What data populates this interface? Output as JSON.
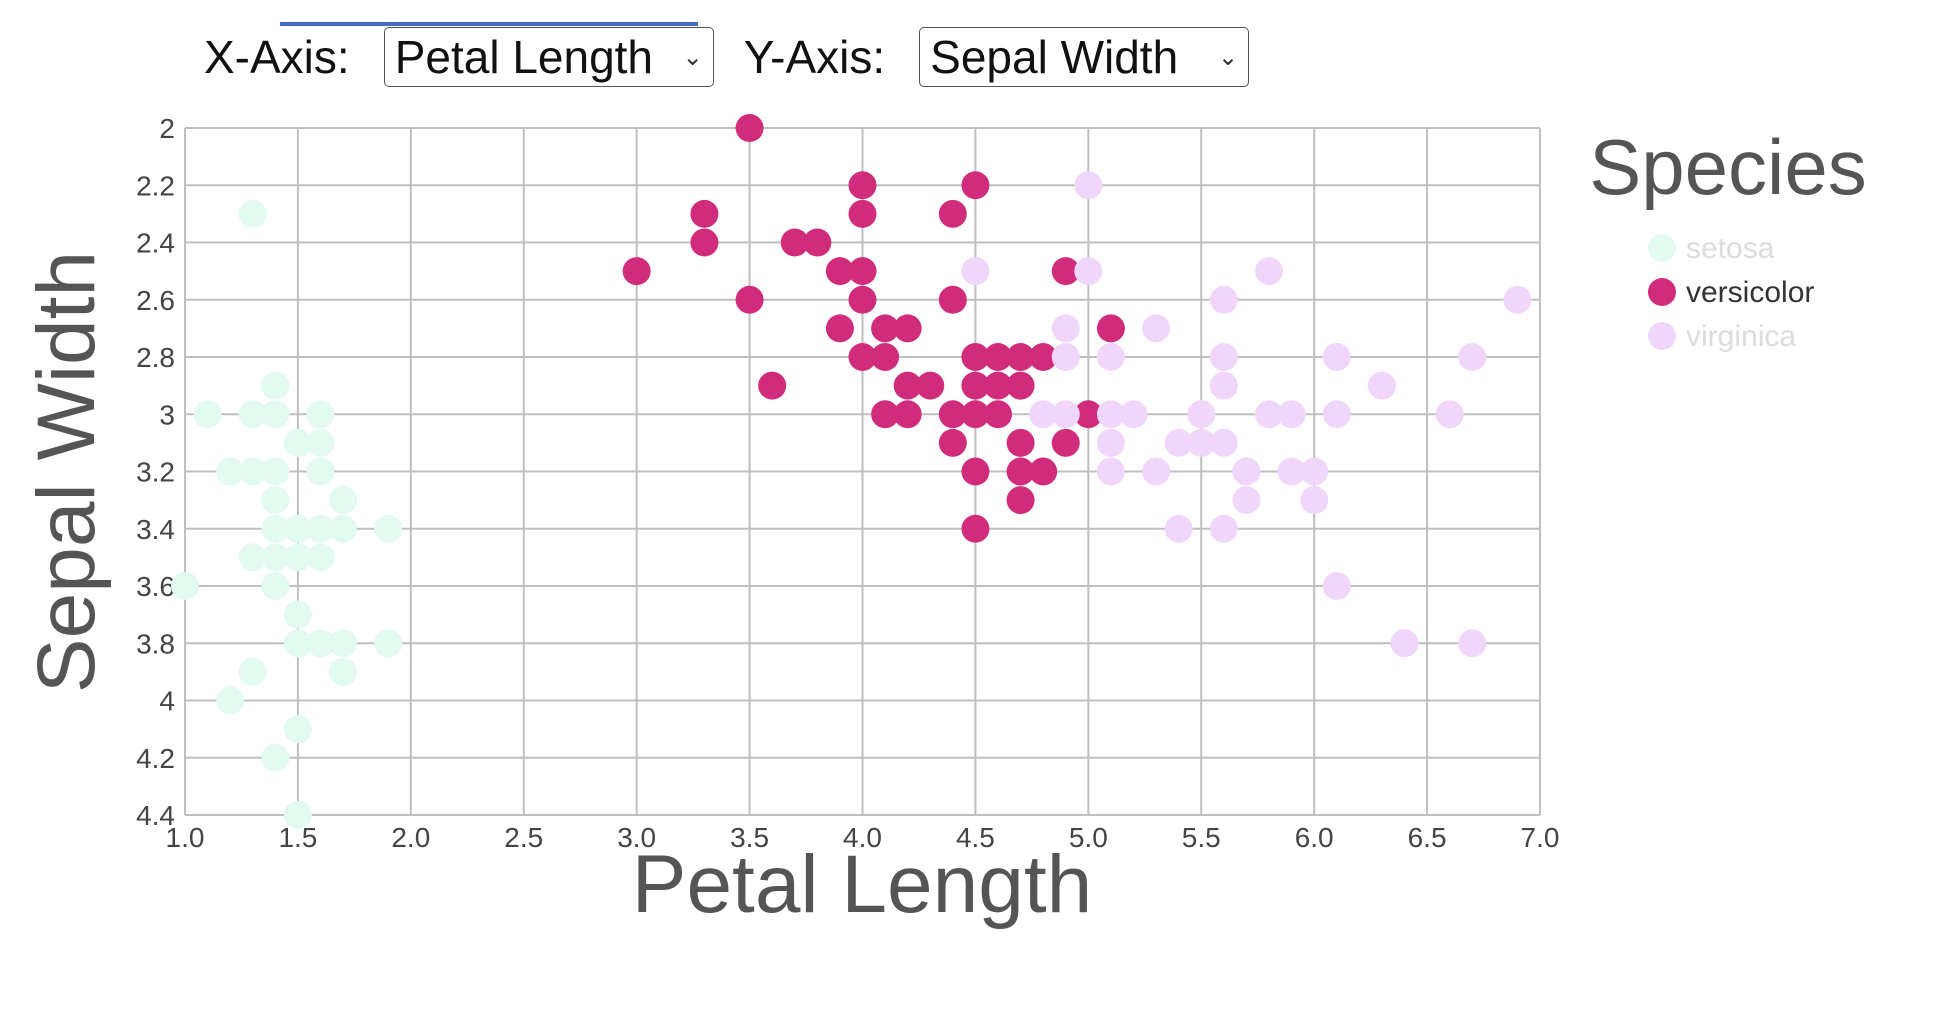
{
  "controls": {
    "x_label": "X-Axis:",
    "x_selected": "Petal Length",
    "y_label": "Y-Axis:",
    "y_selected": "Sepal Width"
  },
  "colors": {
    "setosa": "#e3faf0",
    "versicolor": "#d12b7c",
    "virginica": "#f1d6fb",
    "grid": "#bfbfbf",
    "axis_text": "#444444",
    "title_text": "#555555"
  },
  "legend": {
    "title": "Species",
    "items": [
      {
        "key": "setosa",
        "label": "setosa",
        "highlighted": false
      },
      {
        "key": "versicolor",
        "label": "versicolor",
        "highlighted": true
      },
      {
        "key": "virginica",
        "label": "virginica",
        "highlighted": false
      }
    ]
  },
  "chart_data": {
    "type": "scatter",
    "xlabel": "Petal Length",
    "ylabel": "Sepal Width",
    "xlim": [
      1.0,
      7.0
    ],
    "ylim": [
      2.0,
      4.4
    ],
    "y_inverted": true,
    "grid": true,
    "legend_position": "right",
    "x_ticks": [
      "1.0",
      "1.5",
      "2.0",
      "2.5",
      "3.0",
      "3.5",
      "4.0",
      "4.5",
      "5.0",
      "5.5",
      "6.0",
      "6.5",
      "7.0"
    ],
    "y_ticks": [
      "2",
      "2.2",
      "2.4",
      "2.6",
      "2.8",
      "3",
      "3.2",
      "3.4",
      "3.6",
      "3.8",
      "4",
      "4.2",
      "4.4"
    ],
    "series": [
      {
        "name": "setosa",
        "points": [
          [
            1.3,
            2.3
          ],
          [
            1.4,
            2.9
          ],
          [
            1.1,
            3.0
          ],
          [
            1.3,
            3.0
          ],
          [
            1.4,
            3.0
          ],
          [
            1.6,
            3.0
          ],
          [
            1.5,
            3.1
          ],
          [
            1.6,
            3.1
          ],
          [
            1.2,
            3.2
          ],
          [
            1.3,
            3.2
          ],
          [
            1.4,
            3.2
          ],
          [
            1.6,
            3.2
          ],
          [
            1.4,
            3.3
          ],
          [
            1.7,
            3.3
          ],
          [
            1.5,
            3.4
          ],
          [
            1.4,
            3.4
          ],
          [
            1.6,
            3.4
          ],
          [
            1.7,
            3.4
          ],
          [
            1.9,
            3.4
          ],
          [
            1.3,
            3.5
          ],
          [
            1.4,
            3.5
          ],
          [
            1.5,
            3.5
          ],
          [
            1.6,
            3.5
          ],
          [
            1.0,
            3.6
          ],
          [
            1.4,
            3.6
          ],
          [
            1.5,
            3.7
          ],
          [
            1.5,
            3.8
          ],
          [
            1.6,
            3.8
          ],
          [
            1.7,
            3.8
          ],
          [
            1.9,
            3.8
          ],
          [
            1.3,
            3.9
          ],
          [
            1.7,
            3.9
          ],
          [
            1.2,
            4.0
          ],
          [
            1.5,
            4.1
          ],
          [
            1.4,
            4.2
          ],
          [
            1.5,
            4.4
          ]
        ]
      },
      {
        "name": "versicolor",
        "points": [
          [
            3.5,
            2.0
          ],
          [
            4.0,
            2.2
          ],
          [
            4.5,
            2.2
          ],
          [
            3.3,
            2.3
          ],
          [
            4.0,
            2.3
          ],
          [
            4.4,
            2.3
          ],
          [
            3.3,
            2.4
          ],
          [
            3.7,
            2.4
          ],
          [
            3.8,
            2.4
          ],
          [
            3.0,
            2.5
          ],
          [
            3.9,
            2.5
          ],
          [
            4.0,
            2.5
          ],
          [
            4.9,
            2.5
          ],
          [
            3.5,
            2.6
          ],
          [
            4.0,
            2.6
          ],
          [
            4.4,
            2.6
          ],
          [
            3.9,
            2.7
          ],
          [
            4.1,
            2.7
          ],
          [
            4.2,
            2.7
          ],
          [
            5.1,
            2.7
          ],
          [
            4.0,
            2.8
          ],
          [
            4.1,
            2.8
          ],
          [
            4.5,
            2.8
          ],
          [
            4.6,
            2.8
          ],
          [
            4.7,
            2.8
          ],
          [
            4.8,
            2.8
          ],
          [
            3.6,
            2.9
          ],
          [
            4.2,
            2.9
          ],
          [
            4.3,
            2.9
          ],
          [
            4.5,
            2.9
          ],
          [
            4.6,
            2.9
          ],
          [
            4.7,
            2.9
          ],
          [
            4.1,
            3.0
          ],
          [
            4.2,
            3.0
          ],
          [
            4.4,
            3.0
          ],
          [
            4.5,
            3.0
          ],
          [
            4.6,
            3.0
          ],
          [
            5.0,
            3.0
          ],
          [
            4.4,
            3.1
          ],
          [
            4.7,
            3.1
          ],
          [
            4.9,
            3.1
          ],
          [
            4.5,
            3.2
          ],
          [
            4.7,
            3.2
          ],
          [
            4.8,
            3.2
          ],
          [
            4.7,
            3.3
          ],
          [
            4.5,
            3.4
          ]
        ]
      },
      {
        "name": "virginica",
        "points": [
          [
            5.0,
            2.2
          ],
          [
            4.5,
            2.5
          ],
          [
            5.0,
            2.5
          ],
          [
            5.8,
            2.5
          ],
          [
            5.6,
            2.6
          ],
          [
            6.9,
            2.6
          ],
          [
            4.9,
            2.7
          ],
          [
            5.3,
            2.7
          ],
          [
            4.9,
            2.8
          ],
          [
            5.1,
            2.8
          ],
          [
            5.6,
            2.8
          ],
          [
            6.1,
            2.8
          ],
          [
            6.7,
            2.8
          ],
          [
            5.6,
            2.9
          ],
          [
            6.3,
            2.9
          ],
          [
            4.8,
            3.0
          ],
          [
            4.9,
            3.0
          ],
          [
            5.1,
            3.0
          ],
          [
            5.2,
            3.0
          ],
          [
            5.5,
            3.0
          ],
          [
            5.8,
            3.0
          ],
          [
            5.9,
            3.0
          ],
          [
            6.1,
            3.0
          ],
          [
            6.6,
            3.0
          ],
          [
            5.1,
            3.1
          ],
          [
            5.4,
            3.1
          ],
          [
            5.5,
            3.1
          ],
          [
            5.6,
            3.1
          ],
          [
            5.1,
            3.2
          ],
          [
            5.3,
            3.2
          ],
          [
            5.7,
            3.2
          ],
          [
            5.9,
            3.2
          ],
          [
            6.0,
            3.2
          ],
          [
            5.7,
            3.3
          ],
          [
            6.0,
            3.3
          ],
          [
            5.4,
            3.4
          ],
          [
            5.6,
            3.4
          ],
          [
            6.1,
            3.6
          ],
          [
            6.4,
            3.8
          ],
          [
            6.7,
            3.8
          ]
        ]
      }
    ]
  }
}
